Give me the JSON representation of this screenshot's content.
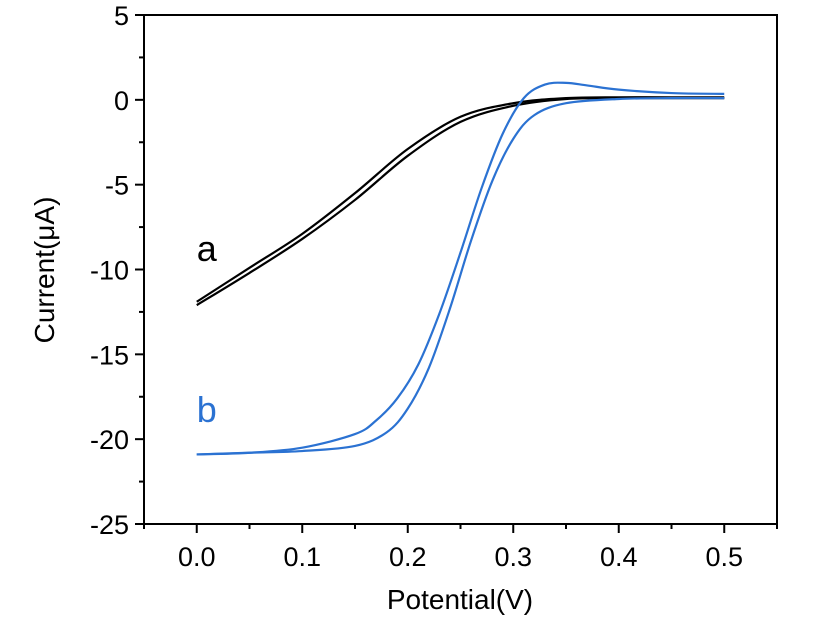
{
  "chart_data": {
    "type": "line",
    "title": "",
    "xlabel": "Potential(V)",
    "ylabel": "Current(μA)",
    "xlim": [
      -0.05,
      0.55
    ],
    "ylim": [
      -25,
      5
    ],
    "grid": false,
    "x_ticks": [
      {
        "value": 0.0,
        "label": "0.0"
      },
      {
        "value": 0.1,
        "label": "0.1"
      },
      {
        "value": 0.2,
        "label": "0.2"
      },
      {
        "value": 0.3,
        "label": "0.3"
      },
      {
        "value": 0.4,
        "label": "0.4"
      },
      {
        "value": 0.5,
        "label": "0.5"
      }
    ],
    "y_ticks": [
      {
        "value": 5,
        "label": "5"
      },
      {
        "value": 0,
        "label": "0"
      },
      {
        "value": -5,
        "label": "-5"
      },
      {
        "value": -10,
        "label": "-10"
      },
      {
        "value": -15,
        "label": "-15"
      },
      {
        "value": -20,
        "label": "-20"
      },
      {
        "value": -25,
        "label": "-25"
      }
    ],
    "x_minor_ticks": [
      -0.05,
      0.05,
      0.15,
      0.25,
      0.35,
      0.45,
      0.55
    ],
    "y_minor_ticks": [
      2.5,
      -2.5,
      -7.5,
      -12.5,
      -17.5,
      -22.5
    ],
    "series": [
      {
        "name": "a",
        "color": "#000000",
        "label_at": {
          "x": 0.0,
          "y": -9.5
        },
        "forward": {
          "x": [
            0.0,
            0.05,
            0.1,
            0.15,
            0.2,
            0.25,
            0.3,
            0.35,
            0.4,
            0.45,
            0.5
          ],
          "y": [
            -12.1,
            -10.2,
            -8.2,
            -5.9,
            -3.3,
            -1.3,
            -0.35,
            0.05,
            0.1,
            0.1,
            0.1
          ]
        },
        "reverse": {
          "x": [
            0.5,
            0.45,
            0.4,
            0.35,
            0.3,
            0.25,
            0.2,
            0.15,
            0.1,
            0.05,
            0.0
          ],
          "y": [
            0.15,
            0.15,
            0.15,
            0.1,
            -0.2,
            -1.0,
            -2.9,
            -5.5,
            -7.9,
            -9.9,
            -11.9
          ]
        }
      },
      {
        "name": "b",
        "color": "#2b72d2",
        "label_at": {
          "x": 0.0,
          "y": -19.0
        },
        "forward": {
          "x": [
            0.0,
            0.05,
            0.1,
            0.15,
            0.18,
            0.2,
            0.22,
            0.24,
            0.26,
            0.28,
            0.3,
            0.32,
            0.35,
            0.4,
            0.45,
            0.5
          ],
          "y": [
            -20.9,
            -20.8,
            -20.7,
            -20.4,
            -19.6,
            -18.2,
            -15.8,
            -12.3,
            -8.3,
            -4.8,
            -2.3,
            -0.9,
            -0.2,
            0.05,
            0.1,
            0.1
          ]
        },
        "reverse": {
          "x": [
            0.5,
            0.45,
            0.4,
            0.37,
            0.35,
            0.33,
            0.31,
            0.29,
            0.27,
            0.25,
            0.23,
            0.21,
            0.19,
            0.17,
            0.15,
            0.1,
            0.05,
            0.0
          ],
          "y": [
            0.35,
            0.4,
            0.6,
            0.85,
            1.0,
            0.9,
            0.1,
            -2.0,
            -5.2,
            -9.0,
            -12.6,
            -15.6,
            -17.6,
            -18.9,
            -19.7,
            -20.5,
            -20.8,
            -20.9
          ]
        }
      }
    ]
  }
}
